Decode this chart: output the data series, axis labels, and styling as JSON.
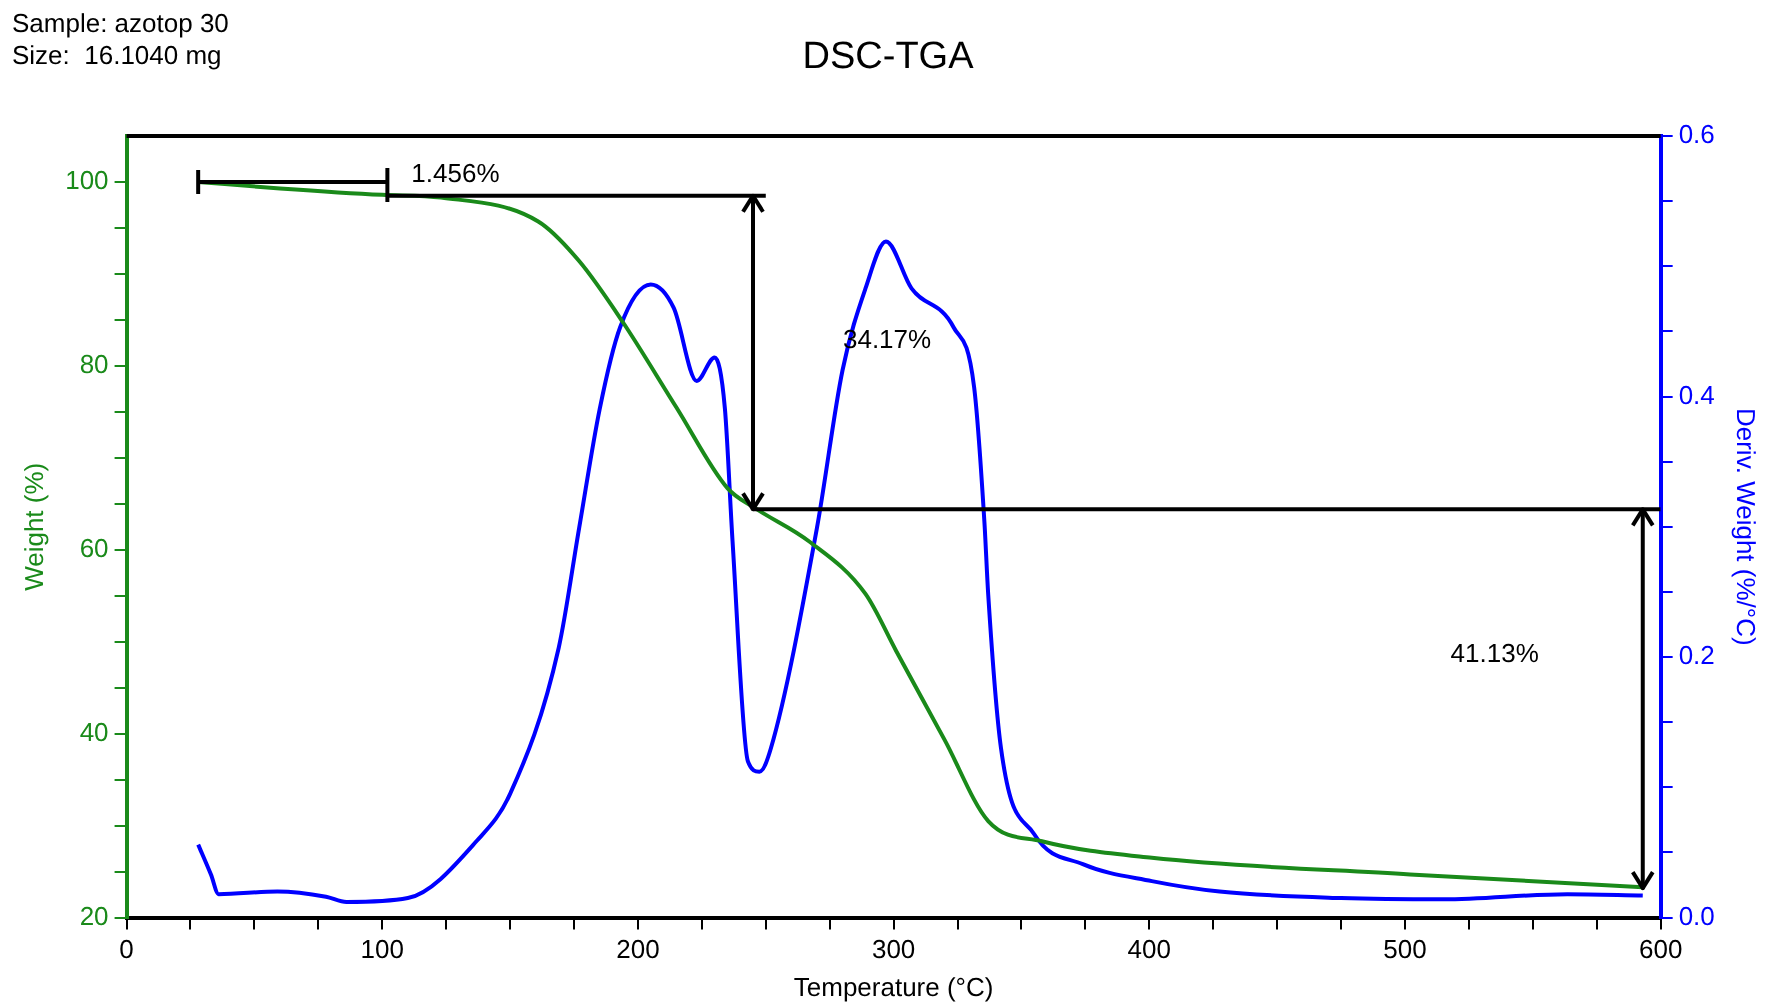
{
  "chart_data": {
    "type": "line",
    "title": "DSC-TGA",
    "xlabel": "Temperature (°C)",
    "ylabel": "Weight (%)",
    "y2label": "Deriv. Weight (%/°C)",
    "annotations": [
      "Sample: azotop 30",
      "Size:  16.1040 mg",
      "1.456%",
      "34.17%",
      "41.13%"
    ],
    "series": [
      {
        "color": "#000000",
        "x": [
          28,
          102
        ],
        "values": [
          100,
          100
        ]
      },
      {
        "color": "#000000",
        "x": [
          102,
          250
        ],
        "values": [
          98.5,
          98.5
        ]
      },
      {
        "color": "#000000",
        "x": [
          245,
          245
        ],
        "values": [
          98.5,
          64.4
        ]
      },
      {
        "color": "#000000",
        "x": [
          245,
          600
        ],
        "values": [
          64.4,
          64.4
        ]
      },
      {
        "color": "#000000",
        "x": [
          593,
          593
        ],
        "values": [
          64.4,
          23.2
        ]
      },
      {
        "color": "#1a8a1a",
        "x": [
          28,
          60,
          100,
          123,
          161,
          177,
          194,
          215,
          235,
          246,
          267,
          289,
          301,
          320,
          337,
          358,
          401,
          502,
          593
        ],
        "values": [
          100,
          99.3,
          98.6,
          98.3,
          95.7,
          91.4,
          84.8,
          75.5,
          66.7,
          64.5,
          60.9,
          55.2,
          49,
          39.3,
          30.5,
          28.3,
          26.5,
          24.7,
          23.3
        ]
      },
      {
        "color": "#0000ff",
        "axis": "y2",
        "x": [
          28,
          33,
          36,
          59,
          78,
          86,
          110,
          137,
          150,
          169,
          177,
          185,
          193,
          205,
          214,
          223,
          230,
          234,
          237,
          243,
          247.5,
          252,
          270,
          280,
          289,
          297,
          307,
          323.5,
          331.5,
          335.5,
          337,
          342,
          355,
          374,
          401,
          427.5,
          475,
          515,
          563.5,
          593
        ],
        "values": [
          0.056,
          0.033,
          0.018,
          0.02,
          0.016,
          0.012,
          0.015,
          0.059,
          0.095,
          0.207,
          0.299,
          0.39,
          0.453,
          0.486,
          0.468,
          0.412,
          0.43,
          0.391,
          0.289,
          0.12,
          0.112,
          0.13,
          0.299,
          0.42,
          0.483,
          0.519,
          0.483,
          0.453,
          0.407,
          0.304,
          0.248,
          0.13,
          0.064,
          0.041,
          0.028,
          0.02,
          0.015,
          0.014,
          0.018,
          0.017
        ]
      }
    ],
    "xlim": [
      0,
      600
    ],
    "xticks": [
      0,
      {
        "value": 25,
        "label": null
      },
      {
        "value": 50,
        "label": null
      },
      {
        "value": 75,
        "label": null
      },
      100,
      {
        "value": 125,
        "label": null
      },
      {
        "value": 150,
        "label": null
      },
      {
        "value": 175,
        "label": null
      },
      200,
      {
        "value": 225,
        "label": null
      },
      {
        "value": 250,
        "label": null
      },
      {
        "value": 275,
        "label": null
      },
      300,
      {
        "value": 325,
        "label": null
      },
      {
        "value": 350,
        "label": null
      },
      {
        "value": 375,
        "label": null
      },
      400,
      {
        "value": 425,
        "label": null
      },
      {
        "value": 450,
        "label": null
      },
      {
        "value": 475,
        "label": null
      },
      500,
      {
        "value": 525,
        "label": null
      },
      {
        "value": 550,
        "label": null
      },
      {
        "value": 575,
        "label": null
      },
      600
    ],
    "ylim": [
      20,
      105
    ],
    "yticks": [
      20,
      {
        "value": 25,
        "label": null
      },
      {
        "value": 30,
        "label": null
      },
      {
        "value": 35,
        "label": null
      },
      40,
      {
        "value": 45,
        "label": null
      },
      {
        "value": 50,
        "label": null
      },
      {
        "value": 55,
        "label": null
      },
      60,
      {
        "value": 65,
        "label": null
      },
      {
        "value": 70,
        "label": null
      },
      {
        "value": 75,
        "label": null
      },
      80,
      {
        "value": 85,
        "label": null
      },
      {
        "value": 90,
        "label": null
      },
      {
        "value": 95,
        "label": null
      },
      100
    ],
    "y2lim": [
      0,
      0.6
    ],
    "y2ticks": [
      {
        "value": 0,
        "label": "0.0"
      },
      {
        "value": 0.05,
        "label": null
      },
      {
        "value": 0.1,
        "label": null
      },
      {
        "value": 0.15,
        "label": null
      },
      0.2,
      {
        "value": 0.25,
        "label": null
      },
      {
        "value": 0.3,
        "label": null
      },
      {
        "value": 0.35,
        "label": null
      },
      0.4,
      {
        "value": 0.45,
        "label": null
      },
      {
        "value": 0.5,
        "label": null
      },
      {
        "value": 0.55,
        "label": null
      },
      0.6
    ],
    "grid": false,
    "legend": false,
    "marker": "none",
    "line_style": "solid"
  }
}
